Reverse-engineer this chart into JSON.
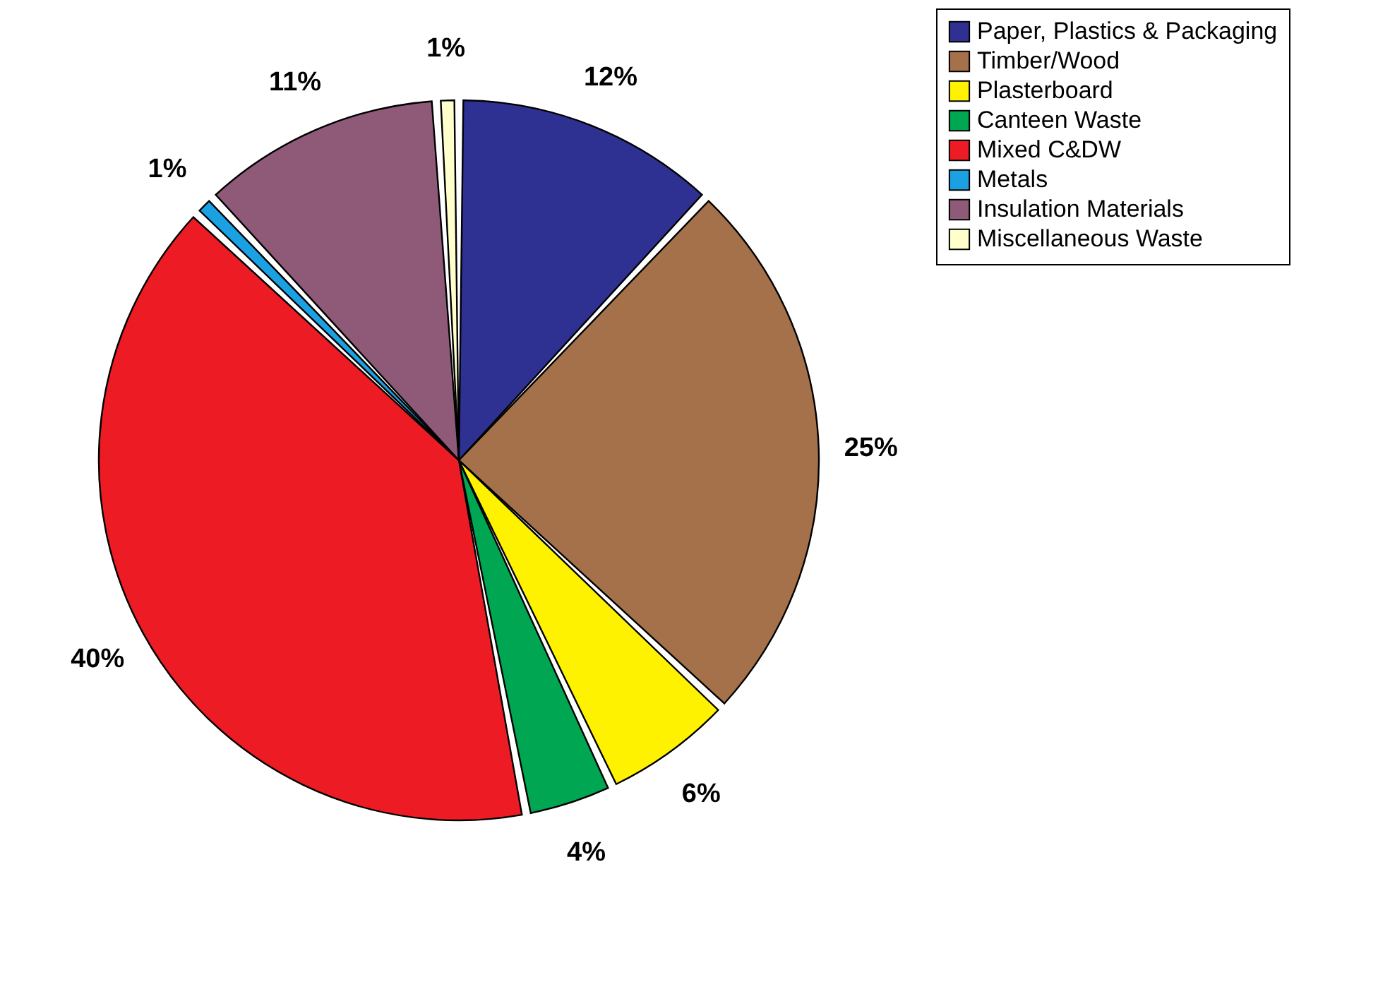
{
  "chart_data": {
    "type": "pie",
    "categories": [
      "Paper, Plastics & Packaging",
      "Timber/Wood",
      "Plasterboard",
      "Canteen Waste",
      "Mixed C&DW",
      "Metals",
      "Insulation Materials",
      "Miscellaneous Waste"
    ],
    "values": [
      12,
      25,
      6,
      4,
      40,
      1,
      11,
      1
    ],
    "value_labels": [
      "12%",
      "25%",
      "6%",
      "4%",
      "40%",
      "1%",
      "11%",
      "1%"
    ],
    "colors": [
      "#2e3192",
      "#a5714a",
      "#fff200",
      "#00a651",
      "#ed1c24",
      "#1ba1e2",
      "#8e5a78",
      "#ffffcc"
    ],
    "legend": "right"
  }
}
